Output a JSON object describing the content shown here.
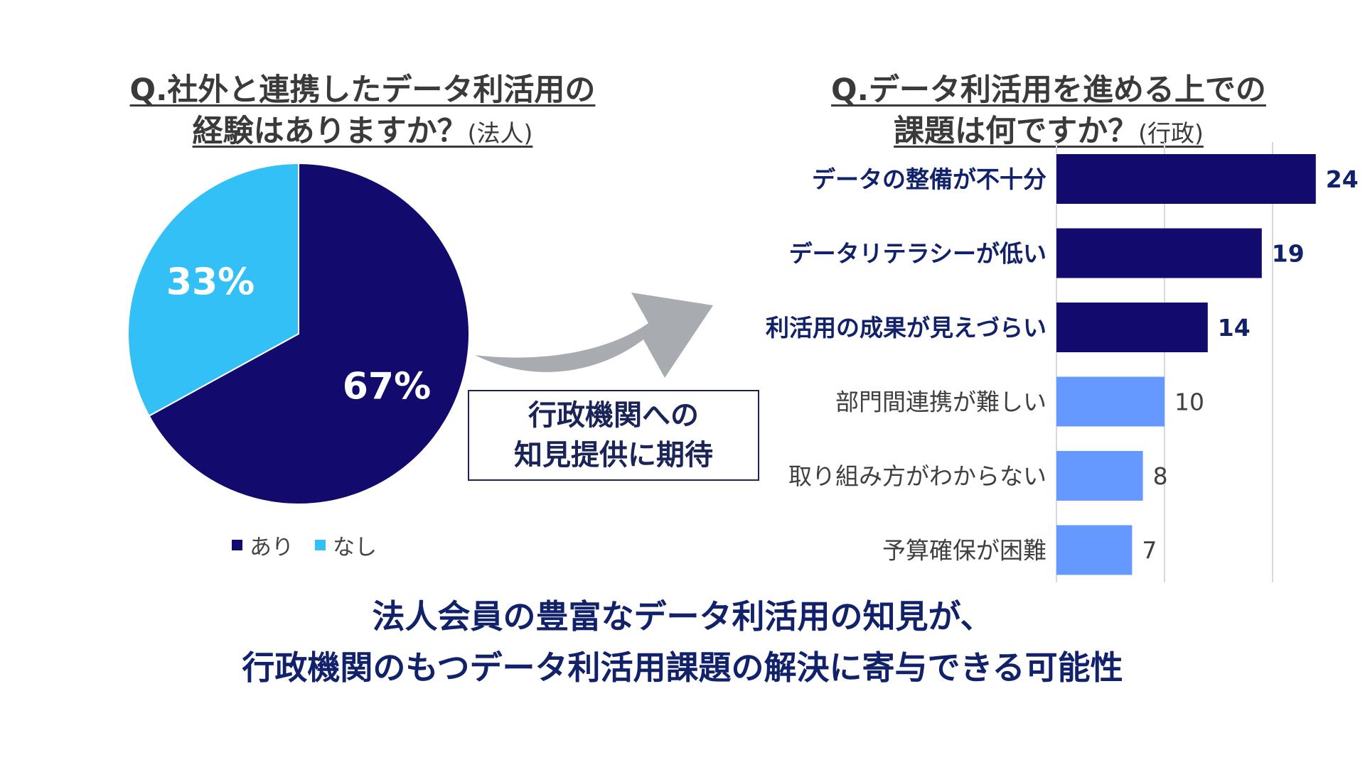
{
  "left": {
    "title_line1": "Q.社外と連携したデータ利活用の",
    "title_line2": "経験はありますか？",
    "title_suffix": "(法人)"
  },
  "right": {
    "title_line1": "Q.データ利活用を進める上での",
    "title_line2": "課題は何ですか？",
    "title_suffix": "(行政)"
  },
  "callout": {
    "line1": "行政機関への",
    "line2": "知見提供に期待"
  },
  "conclusion": {
    "line1": "法人会員の豊富なデータ利活用の知見が、",
    "line2": "行政機関のもつデータ利活用課題の解決に寄与できる可能性"
  },
  "colors": {
    "navy": "#130a6e",
    "cyan": "#33c0f6",
    "light_blue": "#6699ff",
    "text_navy": "#12226a",
    "arrow_gray": "#a8abb0"
  },
  "chart_data": [
    {
      "type": "pie",
      "slices": [
        {
          "name": "あり",
          "value": 67,
          "label": "67%",
          "color": "#130a6e"
        },
        {
          "name": "なし",
          "value": 33,
          "label": "33%",
          "color": "#33c0f6"
        }
      ],
      "legend": "bottom"
    },
    {
      "type": "bar",
      "orientation": "horizontal",
      "categories": [
        "データの整備が不十分",
        "データリテラシーが低い",
        "利活用の成果が見えづらい",
        "部門間連携が難しい",
        "取り組み方がわからない",
        "予算確保が困難"
      ],
      "values": [
        24,
        19,
        14,
        10,
        8,
        7
      ],
      "highlighted": [
        true,
        true,
        true,
        false,
        false,
        false
      ],
      "xlim": [
        0,
        25
      ],
      "grid": true
    }
  ]
}
